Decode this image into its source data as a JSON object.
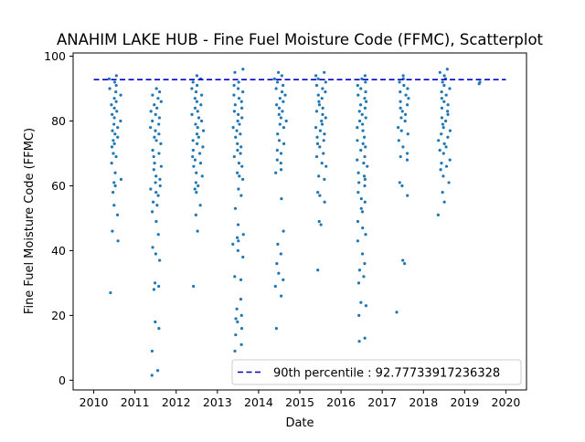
{
  "chart_data": {
    "type": "scatter",
    "title": "ANAHIM LAKE HUB - Fine Fuel Moisture Code (FFMC), Scatterplot",
    "xlabel": "Date",
    "ylabel": "Fine Fuel Moisture Code (FFMC)",
    "xlim": [
      2009.5,
      2020.5
    ],
    "ylim": [
      -3,
      101
    ],
    "x_ticks": [
      2010,
      2011,
      2012,
      2013,
      2014,
      2015,
      2016,
      2017,
      2018,
      2019,
      2020
    ],
    "x_tick_labels": [
      "2010",
      "2011",
      "2012",
      "2013",
      "2014",
      "2015",
      "2016",
      "2017",
      "2018",
      "2019",
      "2020"
    ],
    "y_ticks": [
      0,
      20,
      40,
      60,
      80,
      100
    ],
    "y_tick_labels": [
      "0",
      "20",
      "40",
      "60",
      "80",
      "100"
    ],
    "grid": false,
    "legend_position": "lower-right",
    "marker_color": "#1f77b4",
    "reference_line": {
      "label": "90th percentile : 92.77733917236328",
      "value": 92.77733917236328,
      "color": "#0000cc",
      "style": "dashed"
    },
    "seasons": [
      {
        "year": 2010,
        "start": 2010.35,
        "end": 2010.68,
        "values": [
          27,
          43,
          46,
          51,
          54,
          58,
          60,
          61,
          62,
          64,
          67,
          69,
          70,
          72,
          73,
          74,
          75,
          76,
          77,
          78,
          79,
          80,
          81,
          82,
          83,
          84,
          85,
          86,
          87,
          88,
          89,
          90,
          91,
          92,
          93,
          94
        ]
      },
      {
        "year": 2011,
        "start": 2011.35,
        "end": 2011.68,
        "values": [
          1.5,
          3,
          9,
          16,
          18,
          28,
          29,
          30,
          37,
          39,
          41,
          45,
          49,
          52,
          54,
          55,
          57,
          58,
          59,
          60,
          61,
          62,
          63,
          65,
          66,
          67,
          69,
          70,
          71,
          73,
          74,
          75,
          76,
          77,
          78,
          79,
          80,
          81,
          82,
          83,
          84,
          85,
          86,
          87,
          88,
          89,
          90
        ]
      },
      {
        "year": 2012,
        "start": 2012.35,
        "end": 2012.68,
        "values": [
          29,
          46,
          51,
          54,
          58,
          59,
          60,
          61,
          63,
          64,
          66,
          67,
          68,
          69,
          70,
          71,
          72,
          73,
          74,
          75,
          76,
          77,
          78,
          79,
          80,
          81,
          82,
          83,
          84,
          85,
          86,
          87,
          88,
          89,
          90,
          91,
          92,
          93,
          94
        ]
      },
      {
        "year": 2013,
        "start": 2013.35,
        "end": 2013.68,
        "values": [
          9,
          11,
          14,
          16,
          18,
          19,
          20,
          22,
          25,
          31,
          32,
          38,
          40,
          42,
          43,
          44,
          45,
          48,
          53,
          57,
          59,
          62,
          63,
          64,
          66,
          67,
          69,
          70,
          71,
          72,
          73,
          75,
          76,
          77,
          78,
          79,
          80,
          81,
          82,
          83,
          84,
          85,
          86,
          87,
          88,
          89,
          90,
          91,
          92,
          95,
          96
        ]
      },
      {
        "year": 2014,
        "start": 2014.35,
        "end": 2014.68,
        "values": [
          16,
          26,
          29,
          31,
          33,
          36,
          39,
          42,
          46,
          56,
          64,
          65,
          67,
          68,
          70,
          71,
          73,
          74,
          76,
          78,
          79,
          80,
          81,
          82,
          83,
          84,
          85,
          86,
          87,
          88,
          89,
          90,
          91,
          92,
          93,
          94,
          95
        ]
      },
      {
        "year": 2015,
        "start": 2015.35,
        "end": 2015.68,
        "values": [
          34,
          48,
          49,
          55,
          57,
          58,
          62,
          63,
          66,
          67,
          69,
          70,
          72,
          73,
          74,
          75,
          76,
          77,
          78,
          79,
          80,
          81,
          82,
          83,
          84,
          85,
          86,
          87,
          88,
          89,
          90,
          91,
          92,
          93,
          94,
          95
        ]
      },
      {
        "year": 2016,
        "start": 2016.35,
        "end": 2016.68,
        "values": [
          12,
          13,
          20,
          23,
          24,
          30,
          32,
          34,
          36,
          39,
          43,
          45,
          47,
          49,
          52,
          53,
          55,
          56,
          58,
          60,
          61,
          62,
          63,
          64,
          66,
          67,
          68,
          69,
          71,
          72,
          73,
          74,
          75,
          77,
          78,
          79,
          80,
          81,
          82,
          83,
          84,
          85,
          86,
          87,
          88,
          89,
          90,
          91,
          92,
          93,
          94
        ]
      },
      {
        "year": 2017,
        "start": 2017.35,
        "end": 2017.68,
        "values": [
          21,
          36,
          37,
          57,
          60,
          61,
          68,
          69,
          70,
          72,
          74,
          76,
          77,
          78,
          80,
          81,
          82,
          83,
          84,
          85,
          86,
          87,
          88,
          89,
          90,
          91,
          92,
          93,
          94
        ]
      },
      {
        "year": 2018,
        "start": 2018.35,
        "end": 2018.68,
        "values": [
          51,
          55,
          58,
          61,
          63,
          65,
          66,
          67,
          68,
          70,
          71,
          72,
          73,
          74,
          75,
          76,
          77,
          78,
          79,
          80,
          81,
          82,
          83,
          84,
          85,
          86,
          87,
          88,
          89,
          90,
          91,
          92,
          93,
          94,
          95,
          96
        ]
      },
      {
        "year": 2019,
        "start": 2019.35,
        "end": 2019.38,
        "values": [
          91.5,
          92
        ]
      }
    ]
  }
}
